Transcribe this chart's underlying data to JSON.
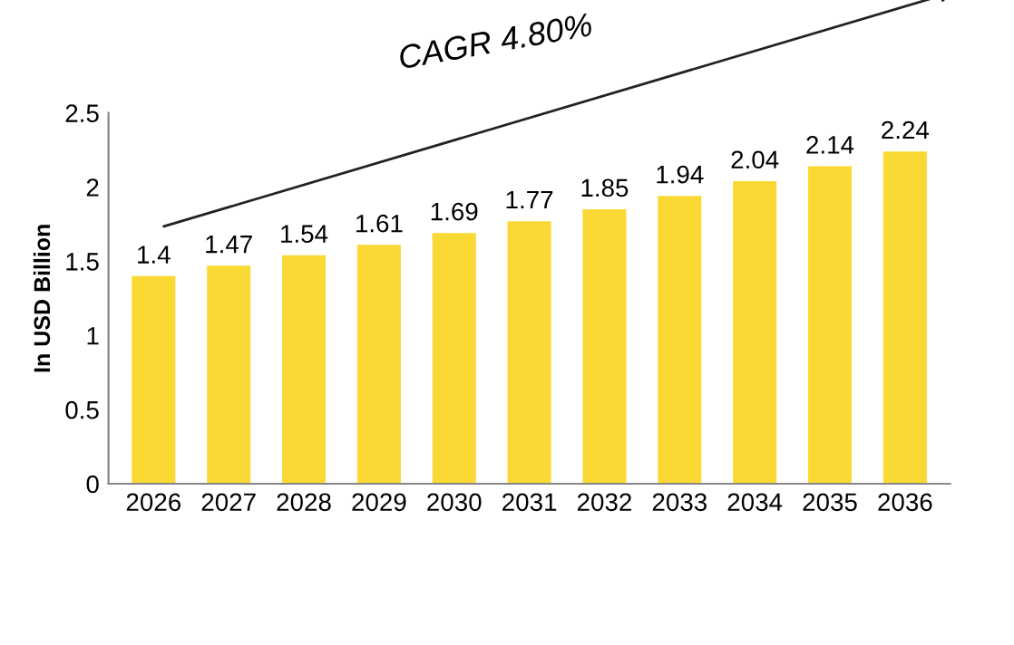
{
  "chart_data": {
    "type": "bar",
    "ylabel": "In USD Billion",
    "categories": [
      "2026",
      "2027",
      "2028",
      "2029",
      "2030",
      "2031",
      "2032",
      "2033",
      "2034",
      "2035",
      "2036"
    ],
    "values": [
      1.4,
      1.47,
      1.54,
      1.61,
      1.69,
      1.77,
      1.85,
      1.94,
      2.04,
      2.14,
      2.24
    ],
    "color": "#fbd934",
    "ylim": [
      0,
      2.5
    ],
    "yticks": [
      0,
      0.5,
      1,
      1.5,
      2,
      2.5
    ],
    "data_labels": true,
    "annotations": [
      "CAGR 4.80%"
    ]
  }
}
